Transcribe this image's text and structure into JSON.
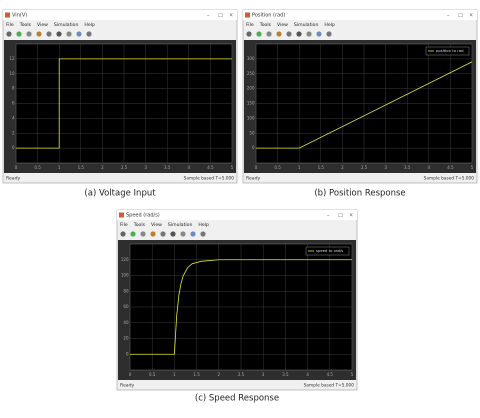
{
  "windows": [
    {
      "title": "Vin(V)",
      "menu": [
        "File",
        "Tools",
        "View",
        "Simulation",
        "Help"
      ],
      "status": "Ready",
      "status_right": "Sample based  T=5.000",
      "caption": "(a)  Voltage Input"
    },
    {
      "title": "Position (rad)",
      "menu": [
        "File",
        "Tools",
        "View",
        "Simulation",
        "Help"
      ],
      "status": "Ready",
      "status_right": "Sample based  T=5.000",
      "caption": "(b)  Position Response"
    },
    {
      "title": "Speed (rad/s)",
      "menu": [
        "File",
        "Tools",
        "View",
        "Simulation",
        "Help"
      ],
      "status": "Ready",
      "status_right": "Sample based  T=5.000",
      "caption": "(c)  Speed Response"
    }
  ],
  "chart_data": [
    {
      "type": "line",
      "x": [
        0,
        1,
        1,
        5
      ],
      "series": [
        {
          "color": "#e8e83a",
          "values": [
            0,
            0,
            12,
            12
          ]
        }
      ],
      "xlim": [
        0,
        5
      ],
      "xticks": [
        0,
        0.5,
        1,
        1.5,
        2,
        2.5,
        3,
        3.5,
        4,
        4.5,
        5
      ],
      "ylim": [
        -2,
        14
      ],
      "yticks": [
        0,
        2,
        4,
        6,
        8,
        10,
        12
      ],
      "grid": true
    },
    {
      "type": "line",
      "x": [
        0,
        1,
        5
      ],
      "series": [
        {
          "name": "position to rad",
          "color": "#e8e83a",
          "values": [
            0,
            0,
            290
          ]
        }
      ],
      "xlim": [
        0,
        5
      ],
      "xticks": [
        0,
        0.5,
        1,
        1.5,
        2,
        2.5,
        3,
        3.5,
        4,
        4.5,
        5
      ],
      "ylim": [
        -50,
        350
      ],
      "yticks": [
        0,
        50,
        100,
        150,
        200,
        250,
        300
      ],
      "grid": true,
      "legend": "top-right"
    },
    {
      "type": "line",
      "x": [
        0,
        1,
        1.05,
        1.1,
        1.15,
        1.2,
        1.3,
        1.4,
        1.6,
        2,
        5
      ],
      "series": [
        {
          "name": "speed to rad/s",
          "color": "#e8e83a",
          "values": [
            0,
            0,
            48,
            75,
            90,
            100,
            110,
            115,
            118,
            120,
            120
          ]
        }
      ],
      "xlim": [
        0,
        5
      ],
      "xticks": [
        0,
        0.5,
        1,
        1.5,
        2,
        2.5,
        3,
        3.5,
        4,
        4.5,
        5
      ],
      "ylim": [
        -20,
        140
      ],
      "yticks": [
        0,
        20,
        40,
        60,
        80,
        100,
        120
      ],
      "grid": true,
      "legend": "top-right"
    }
  ]
}
